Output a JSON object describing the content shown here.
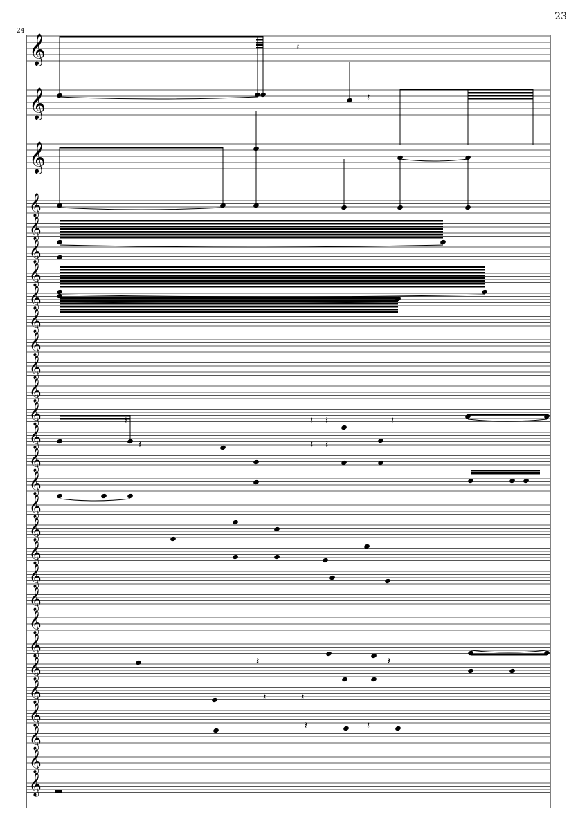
{
  "page_number": "23",
  "measure_number": "24",
  "clef": "treble-clef",
  "ink_color": "#000000",
  "staff_line_color": "#555555"
}
